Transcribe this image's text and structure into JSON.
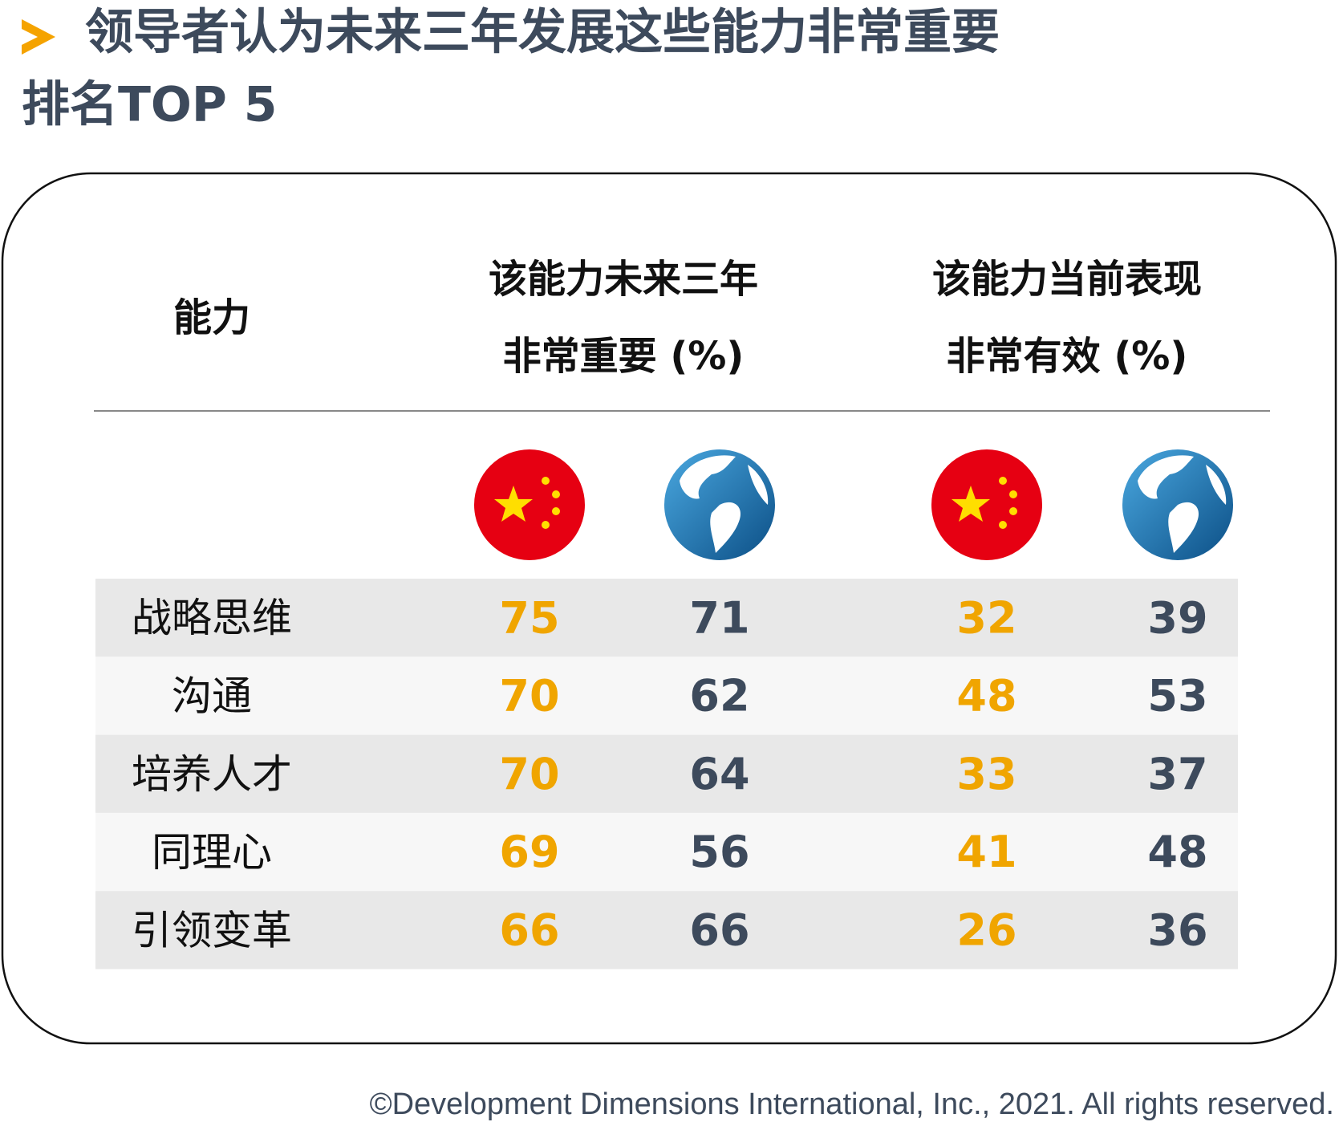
{
  "header": {
    "title": [
      "领导者认为未来三年发展这些能力非常重要",
      "排名TOP 5"
    ]
  },
  "table": {
    "columns": [
      [
        "能力"
      ],
      [
        "该能力未来三年",
        "非常重要 (%)"
      ],
      [
        "该能力当前表现",
        "非常有效 (%)"
      ]
    ],
    "rows": [
      [
        "战略思维",
        75,
        71,
        32,
        39
      ],
      [
        "沟通",
        70,
        62,
        48,
        53
      ],
      [
        "培养人才",
        70,
        64,
        33,
        37
      ],
      [
        "同理心",
        69,
        56,
        41,
        48
      ],
      [
        "引领变革",
        66,
        66,
        26,
        36
      ]
    ]
  },
  "footer": "©Development Dimensions International, Inc., 2021. All rights reserved."
}
